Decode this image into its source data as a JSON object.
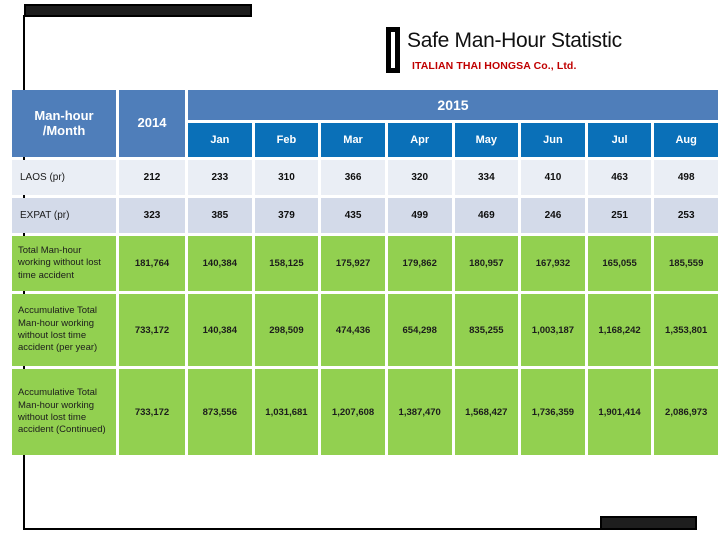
{
  "slide": {
    "title": "Safe Man-Hour Statistic",
    "subtitle": "ITALIAN THAI HONGSA Co., Ltd.",
    "colors": {
      "header_blue": "#4f7eba",
      "month_blue": "#0a70b8",
      "row_light": "#eaeef5",
      "row_mid": "#d3dae9",
      "green": "#92d050",
      "subtitle_red": "#c00000",
      "frame_black": "#1e1e1e"
    }
  },
  "table": {
    "corner_label": "Man-hour /Month",
    "year_2014": "2014",
    "year_2015": "2015",
    "months": [
      "Jan",
      "Feb",
      "Mar",
      "Apr",
      "May",
      "Jun",
      "Jul",
      "Aug"
    ],
    "rows": [
      {
        "label": "LAOS (pr)",
        "values": [
          "212",
          "233",
          "310",
          "366",
          "320",
          "334",
          "410",
          "463",
          "498"
        ]
      },
      {
        "label": "EXPAT (pr)",
        "values": [
          "323",
          "385",
          "379",
          "435",
          "499",
          "469",
          "246",
          "251",
          "253"
        ]
      },
      {
        "label": "Total Man-hour working without lost time accident",
        "values": [
          "181,764",
          "140,384",
          "158,125",
          "175,927",
          "179,862",
          "180,957",
          "167,932",
          "165,055",
          "185,559"
        ]
      },
      {
        "label": "Accumulative Total Man-hour working without lost time accident (per year)",
        "values": [
          "733,172",
          "140,384",
          "298,509",
          "474,436",
          "654,298",
          "835,255",
          "1,003,187",
          "1,168,242",
          "1,353,801"
        ]
      },
      {
        "label": "Accumulative Total Man-hour working without lost time accident (Continued)",
        "values": [
          "733,172",
          "873,556",
          "1,031,681",
          "1,207,608",
          "1,387,470",
          "1,568,427",
          "1,736,359",
          "1,901,414",
          "2,086,973"
        ]
      }
    ]
  }
}
